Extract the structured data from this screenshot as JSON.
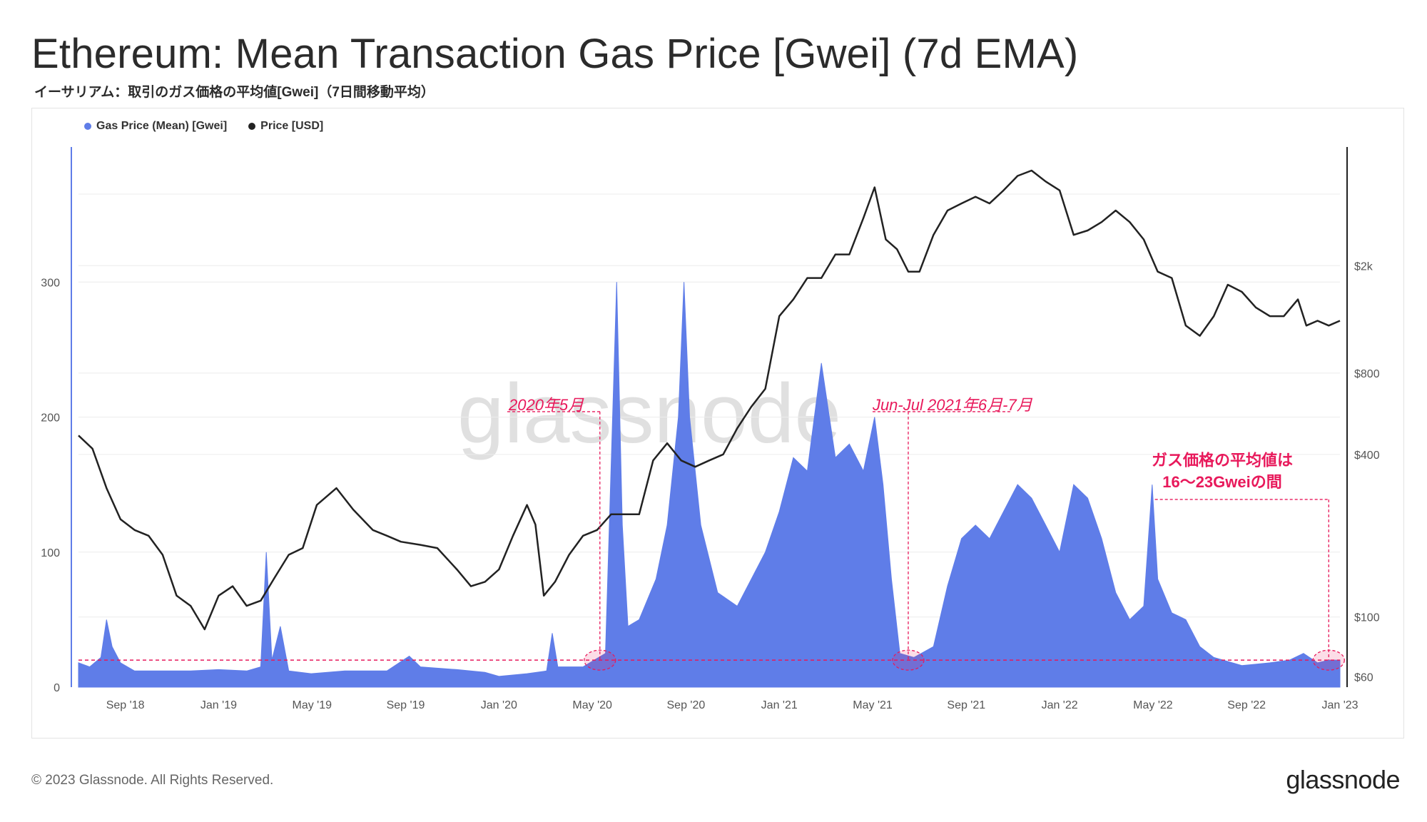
{
  "header": {
    "title": "Ethereum: Mean Transaction Gas Price [Gwei] (7d EMA)",
    "subtitle": "イーサリアム：取引のガス価格の平均値[Gwei]（7日間移動平均）"
  },
  "legend": {
    "gas_label": "Gas Price (Mean) [Gwei]",
    "price_label": "Price [USD]"
  },
  "footer": {
    "copyright": "© 2023 Glassnode. All Rights Reserved.",
    "logo_text": "glassnode"
  },
  "colors": {
    "gas": "#5f7de8",
    "price": "#222222",
    "annotation": "#e8195b",
    "watermark": "#d9d9d9"
  },
  "chart_data": {
    "type": "area",
    "title": "Ethereum: Mean Transaction Gas Price [Gwei] (7d EMA)",
    "watermark": "glassnode",
    "x_range": [
      2018.5,
      2023.0
    ],
    "x_ticks": [
      {
        "label": "Sep '18",
        "t": 2018.667
      },
      {
        "label": "Jan '19",
        "t": 2019.0
      },
      {
        "label": "May '19",
        "t": 2019.333
      },
      {
        "label": "Sep '19",
        "t": 2019.667
      },
      {
        "label": "Jan '20",
        "t": 2020.0
      },
      {
        "label": "May '20",
        "t": 2020.333
      },
      {
        "label": "Sep '20",
        "t": 2020.667
      },
      {
        "label": "Jan '21",
        "t": 2021.0
      },
      {
        "label": "May '21",
        "t": 2021.333
      },
      {
        "label": "Sep '21",
        "t": 2021.667
      },
      {
        "label": "Jan '22",
        "t": 2022.0
      },
      {
        "label": "May '22",
        "t": 2022.333
      },
      {
        "label": "Sep '22",
        "t": 2022.667
      },
      {
        "label": "Jan '23",
        "t": 2023.0
      }
    ],
    "left_axis": {
      "label": "Gas Price (Mean) [Gwei]",
      "range": [
        0,
        400
      ],
      "ticks": [
        0,
        100,
        200,
        300
      ]
    },
    "right_axis": {
      "label": "Price [USD]",
      "scale": "log",
      "range": [
        55,
        5500
      ],
      "ticks": [
        {
          "label": "$60",
          "v": 60
        },
        {
          "label": "$100",
          "v": 100
        },
        {
          "label": "$400",
          "v": 400
        },
        {
          "label": "$800",
          "v": 800
        },
        {
          "label": "$2k",
          "v": 2000
        }
      ]
    },
    "series": [
      {
        "name": "Gas Price (Mean) [Gwei]",
        "axis": "left",
        "points": [
          [
            2018.5,
            18
          ],
          [
            2018.54,
            15
          ],
          [
            2018.58,
            22
          ],
          [
            2018.6,
            50
          ],
          [
            2018.62,
            30
          ],
          [
            2018.65,
            18
          ],
          [
            2018.7,
            12
          ],
          [
            2018.8,
            12
          ],
          [
            2018.9,
            12
          ],
          [
            2019.0,
            13
          ],
          [
            2019.1,
            12
          ],
          [
            2019.15,
            15
          ],
          [
            2019.17,
            100
          ],
          [
            2019.19,
            20
          ],
          [
            2019.22,
            45
          ],
          [
            2019.25,
            12
          ],
          [
            2019.33,
            10
          ],
          [
            2019.45,
            12
          ],
          [
            2019.6,
            12
          ],
          [
            2019.68,
            23
          ],
          [
            2019.72,
            15
          ],
          [
            2019.85,
            13
          ],
          [
            2019.95,
            11
          ],
          [
            2020.0,
            8
          ],
          [
            2020.1,
            10
          ],
          [
            2020.17,
            12
          ],
          [
            2020.19,
            40
          ],
          [
            2020.21,
            15
          ],
          [
            2020.3,
            15
          ],
          [
            2020.38,
            25
          ],
          [
            2020.42,
            300
          ],
          [
            2020.44,
            120
          ],
          [
            2020.46,
            45
          ],
          [
            2020.5,
            50
          ],
          [
            2020.56,
            80
          ],
          [
            2020.6,
            120
          ],
          [
            2020.64,
            200
          ],
          [
            2020.66,
            300
          ],
          [
            2020.68,
            200
          ],
          [
            2020.72,
            120
          ],
          [
            2020.78,
            70
          ],
          [
            2020.85,
            60
          ],
          [
            2020.95,
            100
          ],
          [
            2021.0,
            130
          ],
          [
            2021.05,
            170
          ],
          [
            2021.1,
            160
          ],
          [
            2021.15,
            240
          ],
          [
            2021.2,
            170
          ],
          [
            2021.25,
            180
          ],
          [
            2021.3,
            160
          ],
          [
            2021.34,
            200
          ],
          [
            2021.37,
            150
          ],
          [
            2021.4,
            80
          ],
          [
            2021.43,
            25
          ],
          [
            2021.48,
            22
          ],
          [
            2021.55,
            30
          ],
          [
            2021.6,
            75
          ],
          [
            2021.65,
            110
          ],
          [
            2021.7,
            120
          ],
          [
            2021.75,
            110
          ],
          [
            2021.8,
            130
          ],
          [
            2021.85,
            150
          ],
          [
            2021.9,
            140
          ],
          [
            2021.95,
            120
          ],
          [
            2022.0,
            100
          ],
          [
            2022.05,
            150
          ],
          [
            2022.1,
            140
          ],
          [
            2022.15,
            110
          ],
          [
            2022.2,
            70
          ],
          [
            2022.25,
            50
          ],
          [
            2022.3,
            60
          ],
          [
            2022.33,
            150
          ],
          [
            2022.35,
            80
          ],
          [
            2022.4,
            55
          ],
          [
            2022.45,
            50
          ],
          [
            2022.5,
            30
          ],
          [
            2022.55,
            22
          ],
          [
            2022.65,
            16
          ],
          [
            2022.75,
            18
          ],
          [
            2022.82,
            20
          ],
          [
            2022.87,
            25
          ],
          [
            2022.92,
            18
          ],
          [
            2022.96,
            20
          ],
          [
            2023.0,
            20
          ]
        ]
      },
      {
        "name": "Price [USD]",
        "axis": "right",
        "points": [
          [
            2018.5,
            470
          ],
          [
            2018.55,
            420
          ],
          [
            2018.6,
            300
          ],
          [
            2018.65,
            230
          ],
          [
            2018.7,
            210
          ],
          [
            2018.75,
            200
          ],
          [
            2018.8,
            170
          ],
          [
            2018.85,
            120
          ],
          [
            2018.9,
            110
          ],
          [
            2018.95,
            90
          ],
          [
            2019.0,
            120
          ],
          [
            2019.05,
            130
          ],
          [
            2019.1,
            110
          ],
          [
            2019.15,
            115
          ],
          [
            2019.2,
            140
          ],
          [
            2019.25,
            170
          ],
          [
            2019.3,
            180
          ],
          [
            2019.35,
            260
          ],
          [
            2019.42,
            300
          ],
          [
            2019.48,
            250
          ],
          [
            2019.55,
            210
          ],
          [
            2019.6,
            200
          ],
          [
            2019.65,
            190
          ],
          [
            2019.72,
            185
          ],
          [
            2019.78,
            180
          ],
          [
            2019.85,
            150
          ],
          [
            2019.9,
            130
          ],
          [
            2019.95,
            135
          ],
          [
            2020.0,
            150
          ],
          [
            2020.05,
            200
          ],
          [
            2020.1,
            260
          ],
          [
            2020.13,
            220
          ],
          [
            2020.16,
            120
          ],
          [
            2020.2,
            135
          ],
          [
            2020.25,
            170
          ],
          [
            2020.3,
            200
          ],
          [
            2020.35,
            210
          ],
          [
            2020.4,
            240
          ],
          [
            2020.45,
            240
          ],
          [
            2020.5,
            240
          ],
          [
            2020.55,
            380
          ],
          [
            2020.6,
            440
          ],
          [
            2020.65,
            380
          ],
          [
            2020.7,
            360
          ],
          [
            2020.75,
            380
          ],
          [
            2020.8,
            400
          ],
          [
            2020.85,
            500
          ],
          [
            2020.9,
            600
          ],
          [
            2020.95,
            700
          ],
          [
            2021.0,
            1300
          ],
          [
            2021.05,
            1500
          ],
          [
            2021.1,
            1800
          ],
          [
            2021.15,
            1800
          ],
          [
            2021.2,
            2200
          ],
          [
            2021.25,
            2200
          ],
          [
            2021.3,
            3000
          ],
          [
            2021.34,
            3900
          ],
          [
            2021.38,
            2500
          ],
          [
            2021.42,
            2300
          ],
          [
            2021.46,
            1900
          ],
          [
            2021.5,
            1900
          ],
          [
            2021.55,
            2600
          ],
          [
            2021.6,
            3200
          ],
          [
            2021.65,
            3400
          ],
          [
            2021.7,
            3600
          ],
          [
            2021.75,
            3400
          ],
          [
            2021.8,
            3800
          ],
          [
            2021.85,
            4300
          ],
          [
            2021.9,
            4500
          ],
          [
            2021.95,
            4100
          ],
          [
            2022.0,
            3800
          ],
          [
            2022.05,
            2600
          ],
          [
            2022.1,
            2700
          ],
          [
            2022.15,
            2900
          ],
          [
            2022.2,
            3200
          ],
          [
            2022.25,
            2900
          ],
          [
            2022.3,
            2500
          ],
          [
            2022.35,
            1900
          ],
          [
            2022.4,
            1800
          ],
          [
            2022.45,
            1200
          ],
          [
            2022.5,
            1100
          ],
          [
            2022.55,
            1300
          ],
          [
            2022.6,
            1700
          ],
          [
            2022.65,
            1600
          ],
          [
            2022.7,
            1400
          ],
          [
            2022.75,
            1300
          ],
          [
            2022.8,
            1300
          ],
          [
            2022.85,
            1500
          ],
          [
            2022.88,
            1200
          ],
          [
            2022.92,
            1250
          ],
          [
            2022.96,
            1200
          ],
          [
            2023.0,
            1250
          ]
        ]
      }
    ],
    "annotations": [
      {
        "text": "2020年5月",
        "x": 2020.36,
        "y_gwei": 200
      },
      {
        "text": "Jun-Jul 2021年6月-7月",
        "x": 2021.46,
        "y_gwei": 200
      },
      {
        "text": "ガス価格の平均値は",
        "x": 2022.7,
        "y_gwei": 165
      },
      {
        "text": "16〜23Gweiの間",
        "x": 2022.7,
        "y_gwei": 150
      }
    ],
    "reference_line_gwei": 20
  }
}
